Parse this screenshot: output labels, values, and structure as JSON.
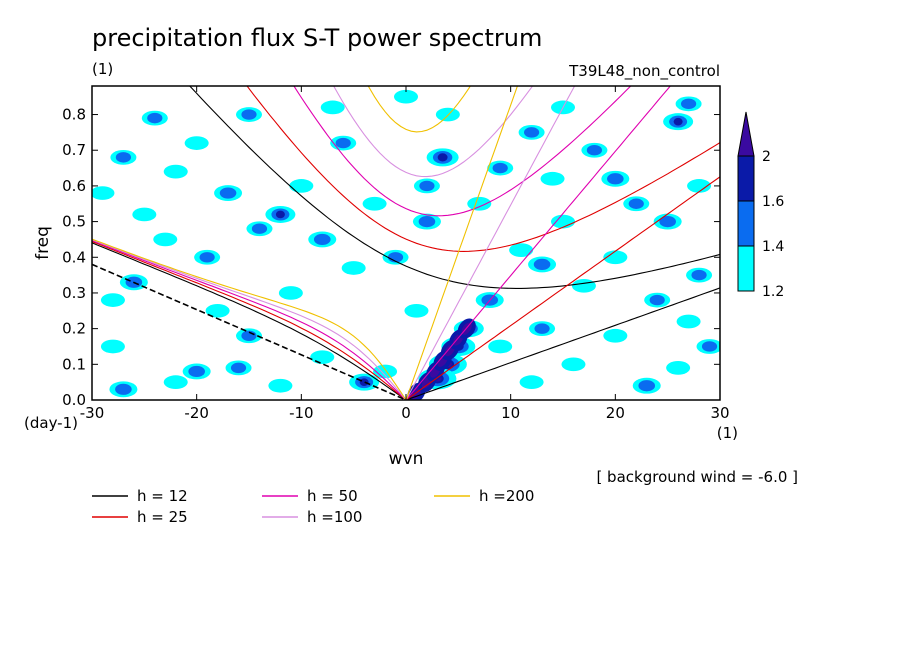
{
  "chart_data": {
    "type": "heatmap",
    "title": "precipitation flux S-T power spectrum",
    "subtitle_left": "(1)",
    "subtitle_right": "T39L48_non_control",
    "xlabel": "wvn",
    "ylabel": "freq",
    "x_unit": "(1)",
    "y_unit": "(day-1)",
    "xlim": [
      -30,
      30
    ],
    "ylim": [
      0,
      0.88
    ],
    "x_ticks": [
      "-30",
      "-20",
      "-10",
      "0",
      "10",
      "20",
      "30"
    ],
    "x_tick_values": [
      -30,
      -20,
      -10,
      0,
      10,
      20,
      30
    ],
    "y_ticks": [
      "0.0",
      "0.1",
      "0.2",
      "0.3",
      "0.4",
      "0.5",
      "0.6",
      "0.7",
      "0.8"
    ],
    "y_tick_values": [
      0,
      0.1,
      0.2,
      0.3,
      0.4,
      0.5,
      0.6,
      0.7,
      0.8
    ],
    "note": "[ background wind = -6.0 ]",
    "colorbar": {
      "levels": [
        1.2,
        1.4,
        1.6,
        2
      ],
      "labels": [
        "1.2",
        "1.4",
        "1.6",
        "2"
      ],
      "colors": [
        "#00ffff",
        "#0a6cf0",
        "#0a1aa8",
        "#3a0aa0"
      ]
    },
    "legend": [
      {
        "label": "h = 12",
        "color": "#000000"
      },
      {
        "label": "h = 25",
        "color": "#e00000"
      },
      {
        "label": "h = 50",
        "color": "#e000b0"
      },
      {
        "label": "h =100",
        "color": "#d890e0"
      },
      {
        "label": "h =200",
        "color": "#f0c000"
      }
    ],
    "dispersion_curves": {
      "background_wind": -6.0,
      "equivalent_depths": [
        12,
        25,
        50,
        100,
        200
      ],
      "colors": [
        "#000000",
        "#e00000",
        "#e000b0",
        "#d890e0",
        "#f0c000"
      ]
    },
    "blobs": [
      {
        "x": 4,
        "y": 0.1,
        "v": 2.0
      },
      {
        "x": 3,
        "y": 0.06,
        "v": 2.0
      },
      {
        "x": 5,
        "y": 0.15,
        "v": 1.8
      },
      {
        "x": 6,
        "y": 0.2,
        "v": 1.6
      },
      {
        "x": 8,
        "y": 0.28,
        "v": 1.5
      },
      {
        "x": 3.5,
        "y": 0.68,
        "v": 1.7
      },
      {
        "x": 2,
        "y": 0.6,
        "v": 1.4
      },
      {
        "x": 1,
        "y": 0.25,
        "v": 1.3
      },
      {
        "x": -1,
        "y": 0.4,
        "v": 1.4
      },
      {
        "x": -5,
        "y": 0.37,
        "v": 1.3
      },
      {
        "x": -8,
        "y": 0.45,
        "v": 1.5
      },
      {
        "x": -12,
        "y": 0.52,
        "v": 1.6
      },
      {
        "x": -14,
        "y": 0.48,
        "v": 1.4
      },
      {
        "x": -17,
        "y": 0.58,
        "v": 1.5
      },
      {
        "x": -20,
        "y": 0.72,
        "v": 1.3
      },
      {
        "x": -24,
        "y": 0.79,
        "v": 1.4
      },
      {
        "x": -22,
        "y": 0.64,
        "v": 1.3
      },
      {
        "x": -26,
        "y": 0.33,
        "v": 1.5
      },
      {
        "x": -28,
        "y": 0.28,
        "v": 1.3
      },
      {
        "x": -18,
        "y": 0.25,
        "v": 1.3
      },
      {
        "x": -15,
        "y": 0.18,
        "v": 1.4
      },
      {
        "x": -20,
        "y": 0.08,
        "v": 1.5
      },
      {
        "x": -22,
        "y": 0.05,
        "v": 1.3
      },
      {
        "x": -16,
        "y": 0.09,
        "v": 1.4
      },
      {
        "x": -8,
        "y": 0.12,
        "v": 1.3
      },
      {
        "x": -4,
        "y": 0.05,
        "v": 1.6
      },
      {
        "x": -2,
        "y": 0.08,
        "v": 1.3
      },
      {
        "x": -28,
        "y": 0.15,
        "v": 1.3
      },
      {
        "x": -27,
        "y": 0.03,
        "v": 1.5
      },
      {
        "x": -25,
        "y": 0.52,
        "v": 1.3
      },
      {
        "x": -10,
        "y": 0.6,
        "v": 1.3
      },
      {
        "x": -6,
        "y": 0.72,
        "v": 1.4
      },
      {
        "x": -7,
        "y": 0.82,
        "v": 1.3
      },
      {
        "x": -15,
        "y": 0.8,
        "v": 1.4
      },
      {
        "x": 0,
        "y": 0.85,
        "v": 1.3
      },
      {
        "x": 4,
        "y": 0.8,
        "v": 1.3
      },
      {
        "x": 12,
        "y": 0.75,
        "v": 1.4
      },
      {
        "x": 15,
        "y": 0.82,
        "v": 1.3
      },
      {
        "x": 18,
        "y": 0.7,
        "v": 1.4
      },
      {
        "x": 20,
        "y": 0.62,
        "v": 1.5
      },
      {
        "x": 22,
        "y": 0.55,
        "v": 1.4
      },
      {
        "x": 25,
        "y": 0.5,
        "v": 1.5
      },
      {
        "x": 26,
        "y": 0.78,
        "v": 1.6
      },
      {
        "x": 27,
        "y": 0.83,
        "v": 1.4
      },
      {
        "x": 15,
        "y": 0.5,
        "v": 1.3
      },
      {
        "x": 11,
        "y": 0.42,
        "v": 1.3
      },
      {
        "x": 13,
        "y": 0.38,
        "v": 1.5
      },
      {
        "x": 17,
        "y": 0.32,
        "v": 1.3
      },
      {
        "x": 20,
        "y": 0.4,
        "v": 1.3
      },
      {
        "x": 24,
        "y": 0.28,
        "v": 1.4
      },
      {
        "x": 27,
        "y": 0.22,
        "v": 1.3
      },
      {
        "x": 29,
        "y": 0.15,
        "v": 1.4
      },
      {
        "x": 16,
        "y": 0.1,
        "v": 1.3
      },
      {
        "x": 12,
        "y": 0.05,
        "v": 1.3
      },
      {
        "x": 23,
        "y": 0.04,
        "v": 1.5
      },
      {
        "x": 26,
        "y": 0.09,
        "v": 1.3
      },
      {
        "x": 20,
        "y": 0.18,
        "v": 1.3
      },
      {
        "x": 9,
        "y": 0.15,
        "v": 1.3
      },
      {
        "x": 13,
        "y": 0.2,
        "v": 1.4
      },
      {
        "x": 7,
        "y": 0.55,
        "v": 1.3
      },
      {
        "x": 9,
        "y": 0.65,
        "v": 1.4
      },
      {
        "x": 14,
        "y": 0.62,
        "v": 1.3
      },
      {
        "x": 2,
        "y": 0.5,
        "v": 1.5
      },
      {
        "x": -3,
        "y": 0.55,
        "v": 1.3
      },
      {
        "x": -19,
        "y": 0.4,
        "v": 1.4
      },
      {
        "x": -23,
        "y": 0.45,
        "v": 1.3
      },
      {
        "x": -11,
        "y": 0.3,
        "v": 1.3
      },
      {
        "x": -12,
        "y": 0.04,
        "v": 1.3
      },
      {
        "x": -29,
        "y": 0.58,
        "v": 1.3
      },
      {
        "x": -27,
        "y": 0.68,
        "v": 1.4
      },
      {
        "x": 28,
        "y": 0.6,
        "v": 1.3
      },
      {
        "x": 28,
        "y": 0.35,
        "v": 1.4
      }
    ]
  }
}
